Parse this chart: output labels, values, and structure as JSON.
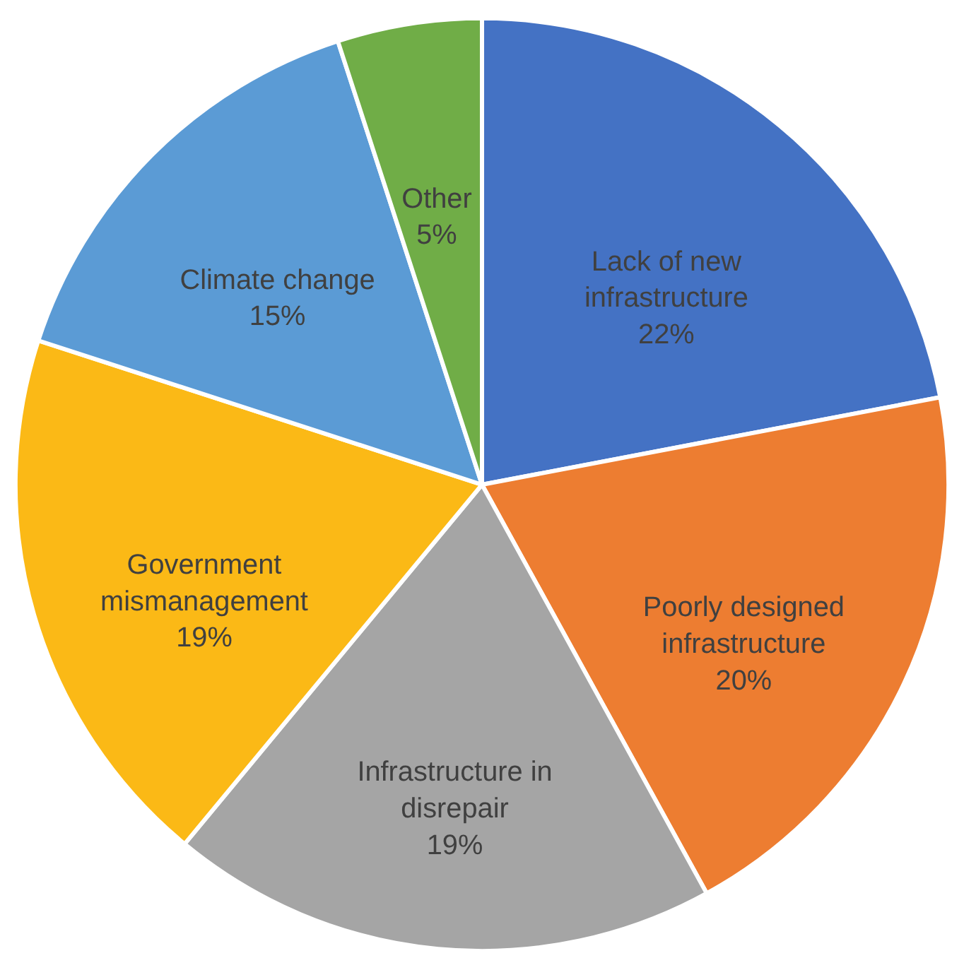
{
  "chart_data": {
    "type": "pie",
    "categories": [
      "Lack of new infrastructure",
      "Poorly designed infrastructure",
      "Infrastructure in disrepair",
      "Government mismanagement",
      "Climate change",
      "Other"
    ],
    "values": [
      22,
      20,
      19,
      19,
      15,
      5
    ],
    "colors": [
      "#4472c4",
      "#ed7d31",
      "#a5a5a5",
      "#fbb916",
      "#5b9bd5",
      "#70ad47"
    ],
    "value_labels": [
      "22%",
      "20%",
      "19%",
      "19%",
      "15%",
      "5%"
    ],
    "legend": false
  }
}
